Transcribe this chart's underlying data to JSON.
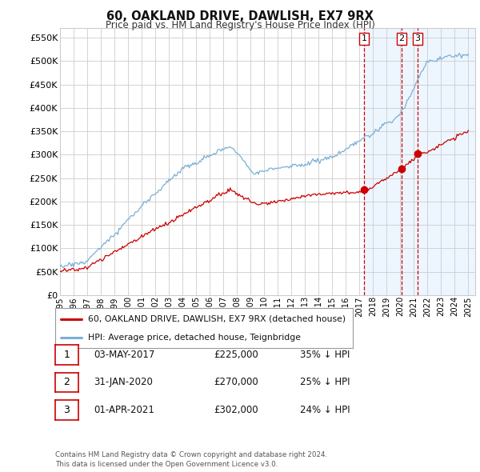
{
  "title": "60, OAKLAND DRIVE, DAWLISH, EX7 9RX",
  "subtitle": "Price paid vs. HM Land Registry's House Price Index (HPI)",
  "hpi_color": "#7bafd4",
  "price_color": "#cc0000",
  "vline_color": "#cc0000",
  "shade_color": "#ddeeff",
  "ylim": [
    0,
    570000
  ],
  "yticks": [
    0,
    50000,
    100000,
    150000,
    200000,
    250000,
    300000,
    350000,
    400000,
    450000,
    500000,
    550000
  ],
  "ytick_labels": [
    "£0",
    "£50K",
    "£100K",
    "£150K",
    "£200K",
    "£250K",
    "£300K",
    "£350K",
    "£400K",
    "£450K",
    "£500K",
    "£550K"
  ],
  "vlines": [
    2017.34,
    2020.08,
    2021.25
  ],
  "sale_prices": [
    225000,
    270000,
    302000
  ],
  "sale_labels": [
    "1",
    "2",
    "3"
  ],
  "legend_entries": [
    "60, OAKLAND DRIVE, DAWLISH, EX7 9RX (detached house)",
    "HPI: Average price, detached house, Teignbridge"
  ],
  "table_rows": [
    {
      "num": "1",
      "date": "03-MAY-2017",
      "price": "£225,000",
      "pct": "35% ↓ HPI"
    },
    {
      "num": "2",
      "date": "31-JAN-2020",
      "price": "£270,000",
      "pct": "25% ↓ HPI"
    },
    {
      "num": "3",
      "date": "01-APR-2021",
      "price": "£302,000",
      "pct": "24% ↓ HPI"
    }
  ],
  "footnote": "Contains HM Land Registry data © Crown copyright and database right 2024.\nThis data is licensed under the Open Government Licence v3.0.",
  "bg_color": "#ffffff",
  "grid_color": "#cccccc"
}
